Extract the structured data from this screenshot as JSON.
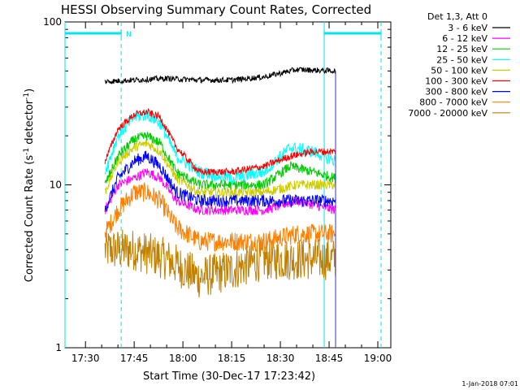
{
  "chart_data": {
    "type": "line",
    "title": "HESSI Observing Summary Count Rates, Corrected",
    "xlabel": "Start Time (30-Dec-17 17:23:42)",
    "ylabel_main": "Corrected Count Rate (s",
    "ylabel_sup1": "-1",
    "ylabel_mid": " detector",
    "ylabel_sup2": "-1",
    "ylabel_end": ")",
    "yscale": "log",
    "ylim": [
      1,
      100
    ],
    "xlim_minutes": [
      1043.7,
      1144
    ],
    "grid": false,
    "legend_title": "Det 1,3, Att 0",
    "legend_position": "right",
    "x_ticks": [
      {
        "m": 1050,
        "label": "17:30"
      },
      {
        "m": 1065,
        "label": "17:45"
      },
      {
        "m": 1080,
        "label": "18:00"
      },
      {
        "m": 1095,
        "label": "18:15"
      },
      {
        "m": 1110,
        "label": "18:30"
      },
      {
        "m": 1125,
        "label": "18:45"
      },
      {
        "m": 1140,
        "label": "19:00"
      }
    ],
    "y_ticks": [
      {
        "v": 1,
        "label": "1"
      },
      {
        "v": 10,
        "label": "10"
      },
      {
        "v": 100,
        "label": "100"
      }
    ],
    "night_bars": [
      [
        1043.7,
        1061
      ],
      [
        1123.5,
        1141
      ]
    ],
    "saa_lines": [
      1061,
      1141
    ],
    "night_edge_lines": [
      1043.7,
      1123.5
    ],
    "flag_label": "N",
    "end_marker_x": 1127,
    "data_range_minutes": [
      1056,
      1127
    ],
    "series": [
      {
        "name": "3 - 6 keV",
        "color": "#000000",
        "noise": 0.04,
        "profile": [
          [
            1056,
            43
          ],
          [
            1065,
            44
          ],
          [
            1075,
            45
          ],
          [
            1085,
            44
          ],
          [
            1095,
            44
          ],
          [
            1105,
            46
          ],
          [
            1115,
            51
          ],
          [
            1127,
            50
          ]
        ]
      },
      {
        "name": "6 - 12 keV",
        "color": "#ff00ff",
        "noise": 0.07,
        "profile": [
          [
            1056,
            7
          ],
          [
            1060,
            10
          ],
          [
            1065,
            11
          ],
          [
            1069,
            12
          ],
          [
            1073,
            11
          ],
          [
            1078,
            8
          ],
          [
            1085,
            7
          ],
          [
            1095,
            7
          ],
          [
            1105,
            7
          ],
          [
            1115,
            8
          ],
          [
            1127,
            7
          ]
        ]
      },
      {
        "name": "12 - 25 keV",
        "color": "#00cc00",
        "noise": 0.07,
        "profile": [
          [
            1056,
            10
          ],
          [
            1060,
            15
          ],
          [
            1065,
            19
          ],
          [
            1069,
            20
          ],
          [
            1073,
            18
          ],
          [
            1078,
            12
          ],
          [
            1085,
            10
          ],
          [
            1095,
            10
          ],
          [
            1105,
            10
          ],
          [
            1113,
            13
          ],
          [
            1120,
            12
          ],
          [
            1127,
            11
          ]
        ]
      },
      {
        "name": "25 - 50 keV",
        "color": "#00ffff",
        "noise": 0.09,
        "profile": [
          [
            1056,
            12
          ],
          [
            1060,
            20
          ],
          [
            1065,
            26
          ],
          [
            1069,
            27
          ],
          [
            1073,
            24
          ],
          [
            1078,
            15
          ],
          [
            1085,
            12
          ],
          [
            1095,
            11
          ],
          [
            1105,
            12
          ],
          [
            1113,
            17
          ],
          [
            1120,
            16
          ],
          [
            1127,
            14
          ]
        ]
      },
      {
        "name": "50 - 100 keV",
        "color": "#cccc00",
        "noise": 0.07,
        "profile": [
          [
            1056,
            9
          ],
          [
            1060,
            14
          ],
          [
            1065,
            17
          ],
          [
            1069,
            18
          ],
          [
            1073,
            16
          ],
          [
            1078,
            11
          ],
          [
            1085,
            9
          ],
          [
            1095,
            9
          ],
          [
            1105,
            9
          ],
          [
            1115,
            10
          ],
          [
            1127,
            10
          ]
        ]
      },
      {
        "name": "100 - 300 keV",
        "color": "#ff0000",
        "noise": 0.05,
        "profile": [
          [
            1056,
            14
          ],
          [
            1060,
            22
          ],
          [
            1065,
            27
          ],
          [
            1069,
            28
          ],
          [
            1073,
            26
          ],
          [
            1078,
            17
          ],
          [
            1085,
            12
          ],
          [
            1095,
            12
          ],
          [
            1105,
            13
          ],
          [
            1113,
            15
          ],
          [
            1120,
            16
          ],
          [
            1127,
            16
          ]
        ]
      },
      {
        "name": "300 - 800 keV",
        "color": "#0000ff",
        "noise": 0.09,
        "profile": [
          [
            1056,
            7
          ],
          [
            1060,
            11
          ],
          [
            1065,
            14
          ],
          [
            1069,
            15
          ],
          [
            1073,
            13
          ],
          [
            1078,
            9
          ],
          [
            1085,
            8
          ],
          [
            1095,
            8
          ],
          [
            1105,
            8
          ],
          [
            1115,
            8
          ],
          [
            1127,
            8
          ]
        ]
      },
      {
        "name": "800 - 7000 keV",
        "color": "#ff8000",
        "noise": 0.14,
        "profile": [
          [
            1056,
            5
          ],
          [
            1060,
            7
          ],
          [
            1065,
            9
          ],
          [
            1069,
            9
          ],
          [
            1073,
            8
          ],
          [
            1078,
            5.5
          ],
          [
            1085,
            4.5
          ],
          [
            1095,
            4.5
          ],
          [
            1105,
            4.5
          ],
          [
            1115,
            5
          ],
          [
            1127,
            5
          ]
        ]
      },
      {
        "name": "7000 - 20000 keV",
        "color": "#c08000",
        "noise": 0.3,
        "profile": [
          [
            1056,
            4
          ],
          [
            1065,
            4
          ],
          [
            1075,
            3.5
          ],
          [
            1085,
            2.7
          ],
          [
            1095,
            3
          ],
          [
            1105,
            3.5
          ],
          [
            1115,
            3.5
          ],
          [
            1127,
            3.5
          ]
        ]
      }
    ]
  },
  "footer": {
    "timestamp": "1-Jan-2018 07:01"
  },
  "colors": {
    "night_bar": "#00e5ee",
    "axis": "#000000",
    "end_marker": "#3333cc"
  }
}
